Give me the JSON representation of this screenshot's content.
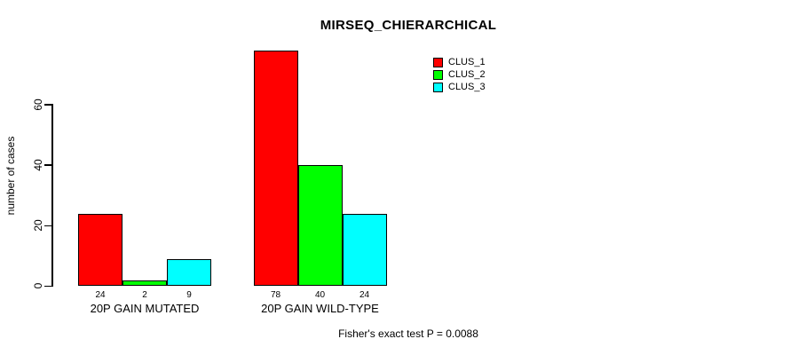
{
  "title": "MIRSEQ_CHIERARCHICAL",
  "footer": "Fisher's exact test P = 0.0088",
  "chart_data": {
    "type": "bar",
    "title": "MIRSEQ_CHIERARCHICAL",
    "xlabel": "",
    "ylabel": "number of cases",
    "categories": [
      "20P GAIN MUTATED",
      "20P GAIN WILD-TYPE"
    ],
    "series": [
      {
        "name": "CLUS_1",
        "color": "#FF0000",
        "values": [
          24,
          78
        ]
      },
      {
        "name": "CLUS_2",
        "color": "#00FF00",
        "values": [
          2,
          40
        ]
      },
      {
        "name": "CLUS_3",
        "color": "#00FFFF",
        "values": [
          9,
          24
        ]
      }
    ],
    "bar_value_labels": [
      [
        "24",
        "2",
        "9"
      ],
      [
        "78",
        "40",
        "24"
      ]
    ],
    "yticks": [
      "0",
      "20",
      "40",
      "60"
    ],
    "ytick_values": [
      0,
      20,
      40,
      60
    ],
    "ylim": [
      0,
      80
    ],
    "grid": false,
    "legend_position": "top-right",
    "legend_entries": [
      "CLUS_1",
      "CLUS_2",
      "CLUS_3"
    ],
    "annotation": "Fisher's exact test P = 0.0088",
    "background_color": "#FFFFFF",
    "axis_color": "#000000"
  }
}
